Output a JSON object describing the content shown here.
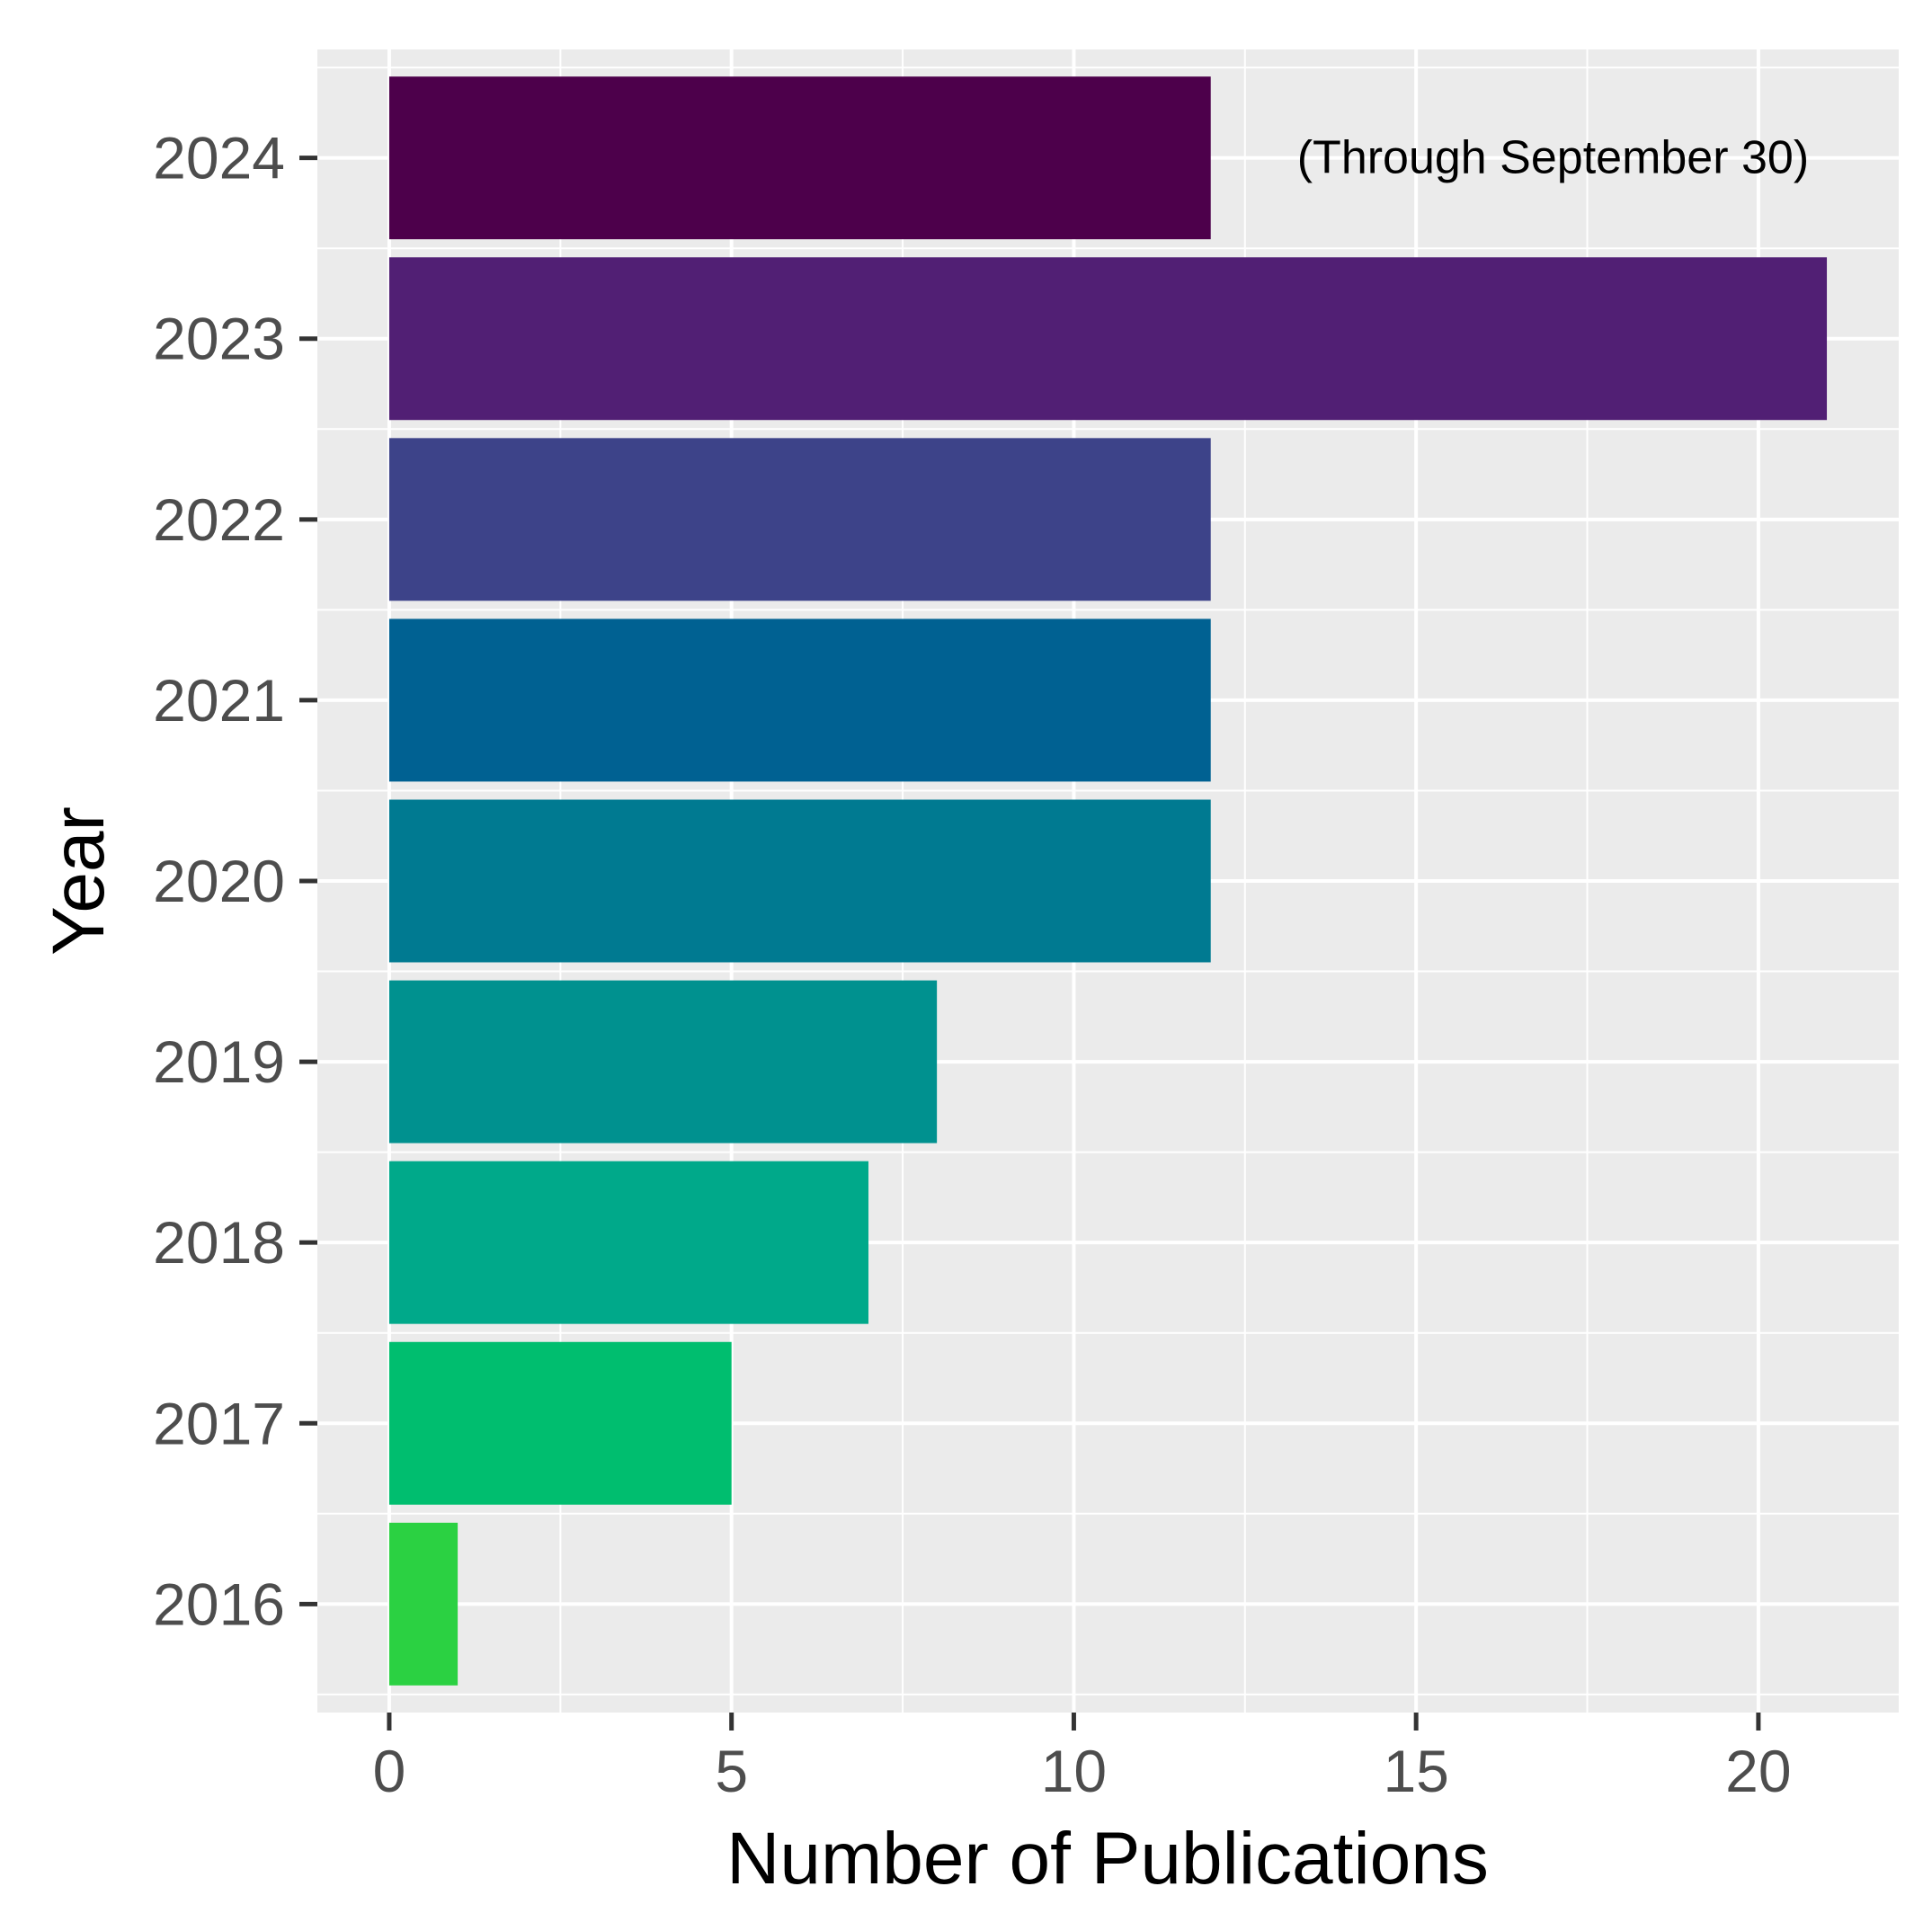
{
  "chart_data": {
    "type": "bar",
    "orientation": "horizontal",
    "categories": [
      "2016",
      "2017",
      "2018",
      "2019",
      "2020",
      "2021",
      "2022",
      "2023",
      "2024"
    ],
    "values": [
      1,
      5,
      7,
      8,
      12,
      12,
      12,
      21,
      12
    ],
    "colors": [
      "#2BD142",
      "#00BE6F",
      "#00A98A",
      "#00918F",
      "#007A91",
      "#006192",
      "#3D4389",
      "#511F74",
      "#4D004B"
    ],
    "xlabel": "Number of Publications",
    "ylabel": "Year",
    "xlim": [
      -1.05,
      22.05
    ],
    "xticks": [
      0,
      5,
      10,
      15,
      20
    ],
    "annotation": {
      "text": "(Through September 30)",
      "category": "2024",
      "x": 17
    },
    "grid": true,
    "panel_background": "#EBEBEB",
    "gridline_color": "#FFFFFF"
  }
}
